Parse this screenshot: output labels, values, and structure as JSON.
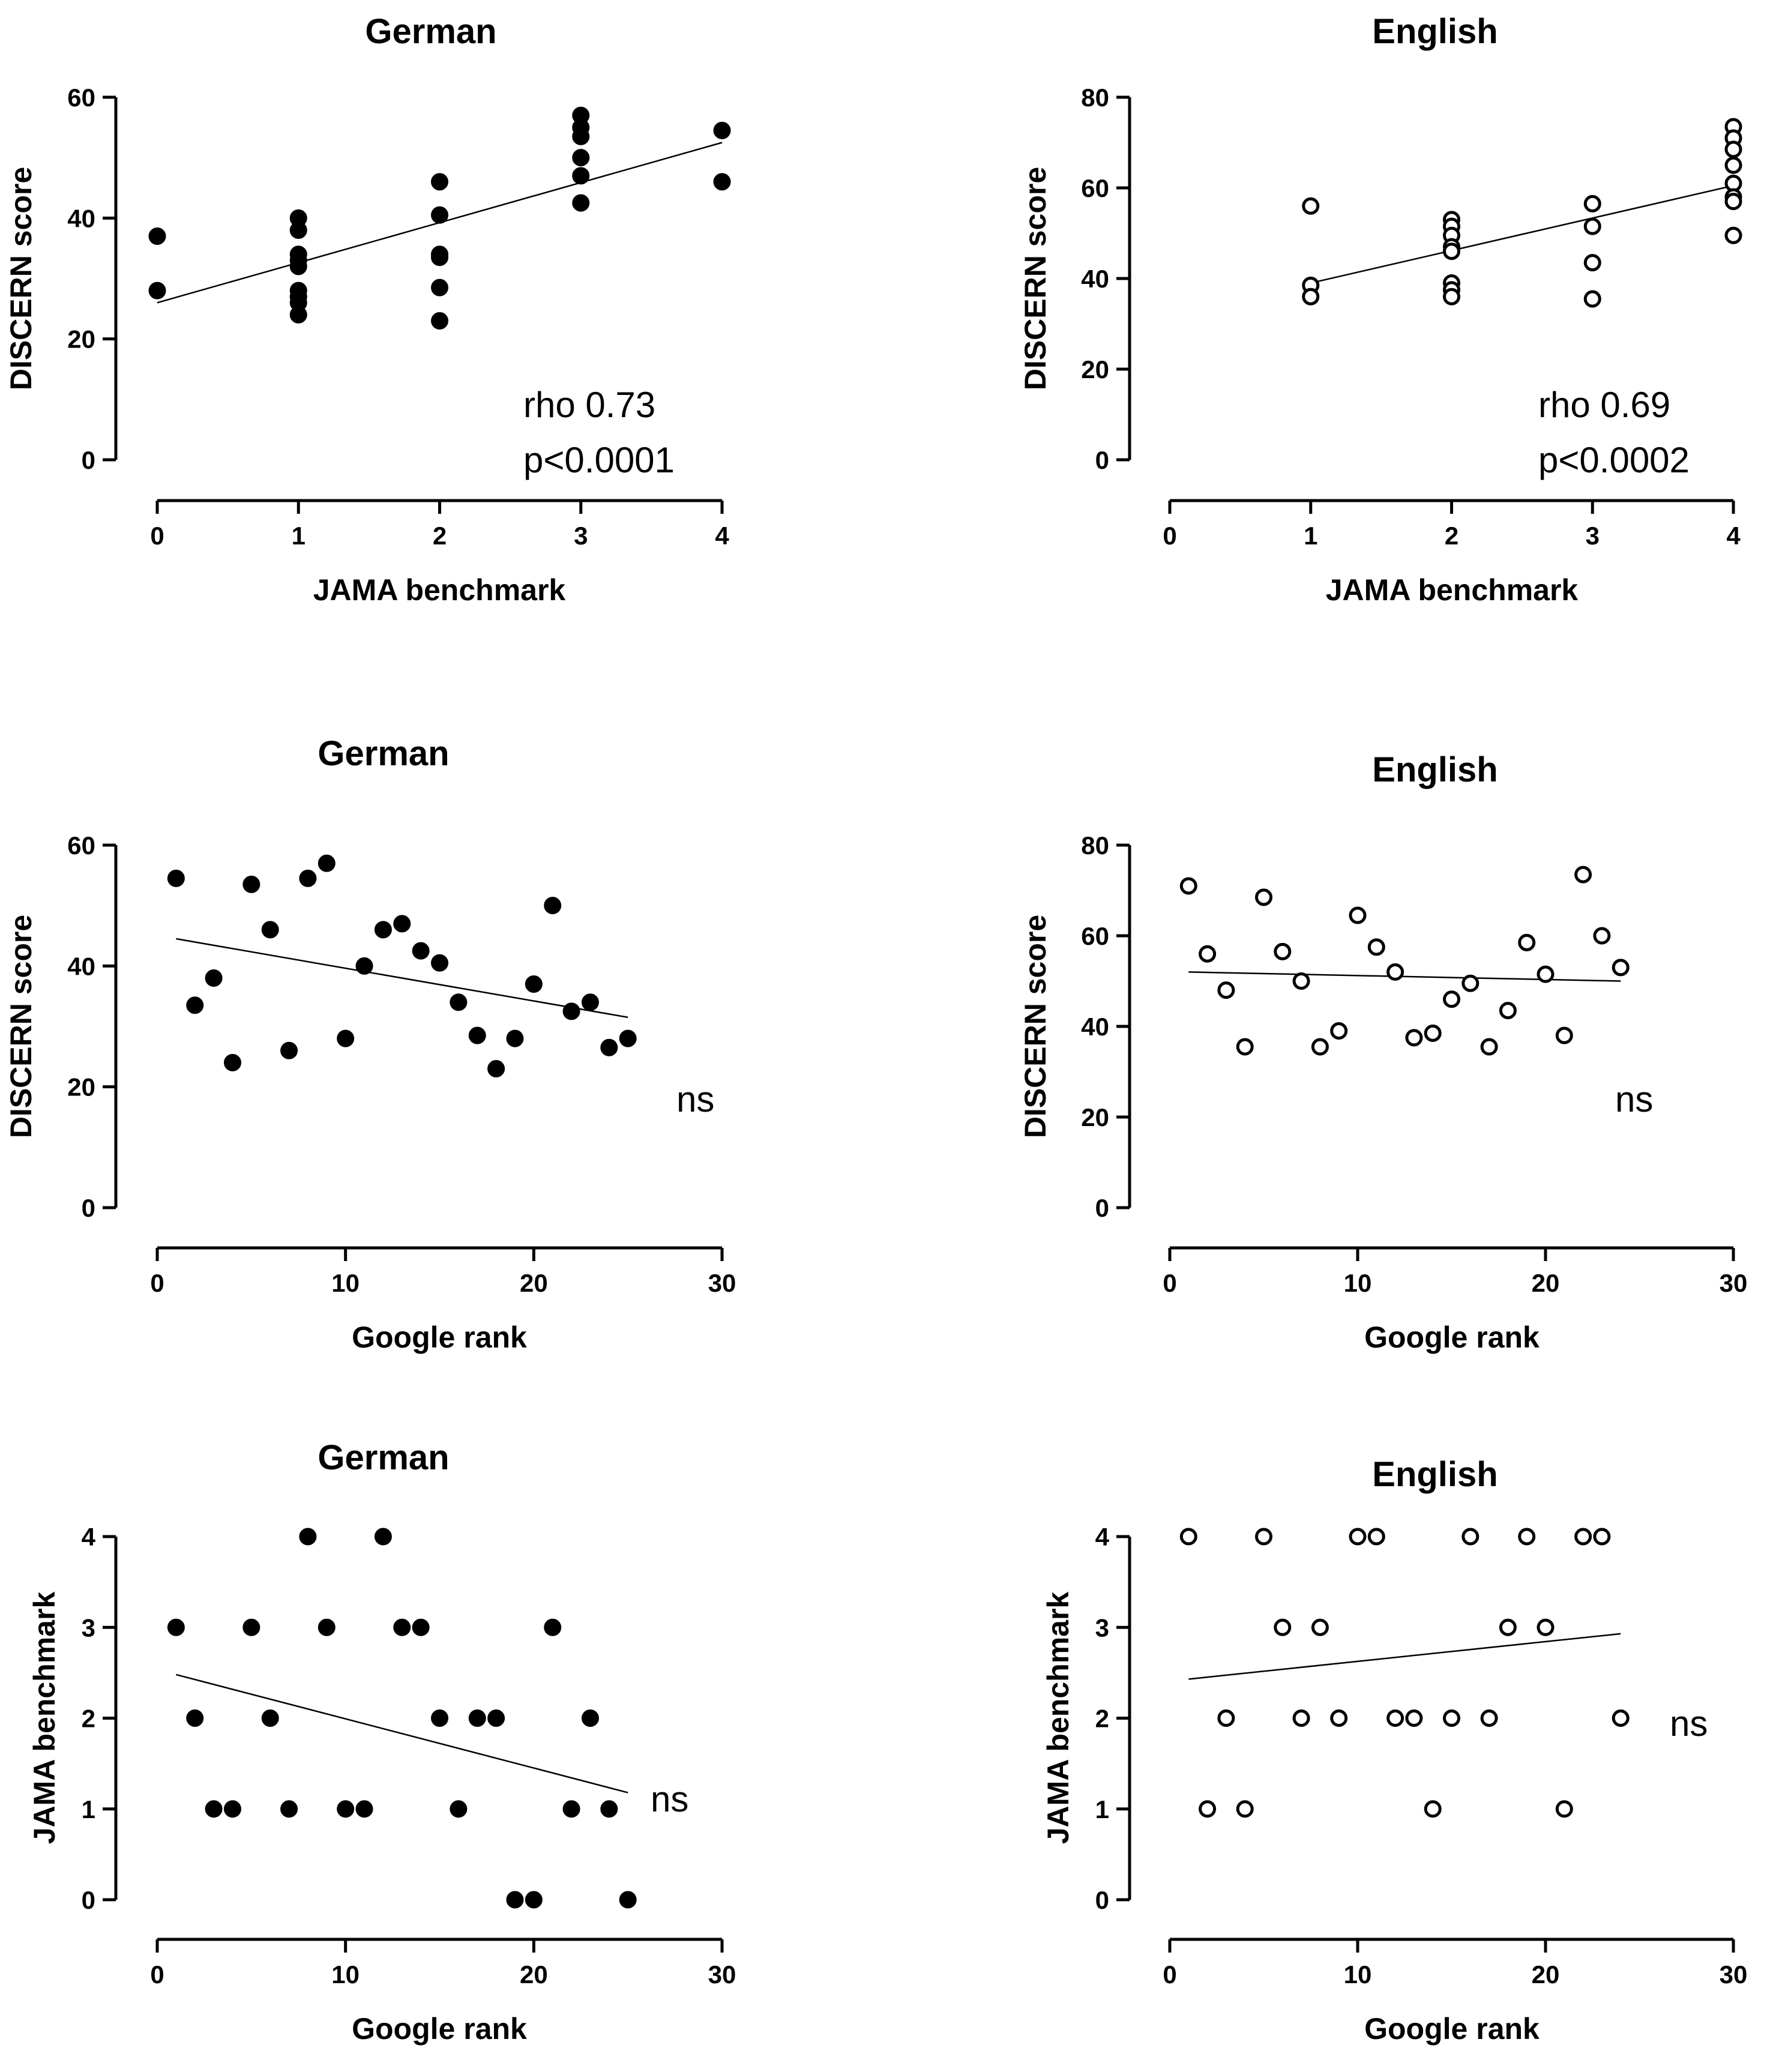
{
  "chart_data": [
    {
      "type": "scatter",
      "title": "German",
      "xlabel": "JAMA benchmark",
      "ylabel": "DISCERN score",
      "xlim": [
        0,
        4
      ],
      "ylim": [
        0,
        60
      ],
      "xticks": [
        "0",
        "1",
        "2",
        "3",
        "4"
      ],
      "yticks": [
        "0",
        "20",
        "40",
        "60"
      ],
      "marker": "filled",
      "points": [
        [
          0,
          37
        ],
        [
          0,
          28
        ],
        [
          1,
          40
        ],
        [
          1,
          38
        ],
        [
          1,
          34
        ],
        [
          1,
          33
        ],
        [
          1,
          32
        ],
        [
          1,
          28
        ],
        [
          1,
          27
        ],
        [
          1,
          26
        ],
        [
          1,
          24
        ],
        [
          2,
          46
        ],
        [
          2,
          40.5
        ],
        [
          2,
          34
        ],
        [
          2,
          33.5
        ],
        [
          2,
          28.5
        ],
        [
          2,
          23
        ],
        [
          3,
          57
        ],
        [
          3,
          55
        ],
        [
          3,
          53.5
        ],
        [
          3,
          50
        ],
        [
          3,
          47
        ],
        [
          3,
          42.5
        ],
        [
          4,
          54.5
        ],
        [
          4,
          46
        ]
      ],
      "fit_line": [
        [
          0,
          26
        ],
        [
          4,
          52.5
        ]
      ],
      "annotation": [
        "rho 0.73",
        "p<0.0001"
      ]
    },
    {
      "type": "scatter",
      "title": "English",
      "xlabel": "JAMA benchmark",
      "ylabel": "DISCERN score",
      "xlim": [
        0,
        4
      ],
      "ylim": [
        0,
        80
      ],
      "xticks": [
        "0",
        "1",
        "2",
        "3",
        "4"
      ],
      "yticks": [
        "0",
        "20",
        "40",
        "60",
        "80"
      ],
      "marker": "open",
      "points": [
        [
          1,
          56
        ],
        [
          1,
          38.5
        ],
        [
          1,
          36
        ],
        [
          2,
          53
        ],
        [
          2,
          51.5
        ],
        [
          2,
          49.5
        ],
        [
          2,
          47
        ],
        [
          2,
          46
        ],
        [
          2,
          39
        ],
        [
          2,
          37.5
        ],
        [
          2,
          36
        ],
        [
          3,
          56.5
        ],
        [
          3,
          51.5
        ],
        [
          3,
          43.5
        ],
        [
          3,
          35.5
        ],
        [
          4,
          73.5
        ],
        [
          4,
          71
        ],
        [
          4,
          68.5
        ],
        [
          4,
          65
        ],
        [
          4,
          61
        ],
        [
          4,
          58
        ],
        [
          4,
          57
        ],
        [
          4,
          49.5
        ]
      ],
      "fit_line": [
        [
          1,
          39
        ],
        [
          4,
          60.5
        ]
      ],
      "annotation": [
        "rho 0.69",
        "p<0.0002"
      ]
    },
    {
      "type": "scatter",
      "title": "German",
      "xlabel": "Google rank",
      "ylabel": "DISCERN score",
      "xlim": [
        0,
        30
      ],
      "ylim": [
        0,
        60
      ],
      "xticks": [
        "0",
        "10",
        "20",
        "30"
      ],
      "yticks": [
        "0",
        "20",
        "40",
        "60"
      ],
      "marker": "filled",
      "points": [
        [
          1,
          54.5
        ],
        [
          2,
          33.5
        ],
        [
          3,
          38
        ],
        [
          4,
          24
        ],
        [
          5,
          53.5
        ],
        [
          6,
          46
        ],
        [
          7,
          26
        ],
        [
          8,
          54.5
        ],
        [
          9,
          57
        ],
        [
          10,
          28
        ],
        [
          11,
          40
        ],
        [
          12,
          46
        ],
        [
          13,
          47
        ],
        [
          14,
          42.5
        ],
        [
          15,
          40.5
        ],
        [
          16,
          34
        ],
        [
          17,
          28.5
        ],
        [
          18,
          23
        ],
        [
          19,
          28
        ],
        [
          20,
          37
        ],
        [
          21,
          50
        ],
        [
          22,
          32.5
        ],
        [
          23,
          34
        ],
        [
          24,
          26.5
        ],
        [
          25,
          28
        ]
      ],
      "fit_line": [
        [
          1,
          44.5
        ],
        [
          25,
          31.5
        ]
      ],
      "annotation": [
        "ns"
      ]
    },
    {
      "type": "scatter",
      "title": "English",
      "xlabel": "Google rank",
      "ylabel": "DISCERN score",
      "xlim": [
        0,
        30
      ],
      "ylim": [
        0,
        80
      ],
      "xticks": [
        "0",
        "10",
        "20",
        "30"
      ],
      "yticks": [
        "0",
        "20",
        "40",
        "60",
        "80"
      ],
      "marker": "open",
      "points": [
        [
          1,
          71
        ],
        [
          2,
          56
        ],
        [
          3,
          48
        ],
        [
          4,
          35.5
        ],
        [
          5,
          68.5
        ],
        [
          6,
          56.5
        ],
        [
          7,
          50
        ],
        [
          8,
          35.5
        ],
        [
          9,
          39
        ],
        [
          10,
          64.5
        ],
        [
          11,
          57.5
        ],
        [
          12,
          52
        ],
        [
          13,
          37.5
        ],
        [
          14,
          38.5
        ],
        [
          15,
          46
        ],
        [
          16,
          49.5
        ],
        [
          17,
          35.5
        ],
        [
          18,
          43.5
        ],
        [
          19,
          58.5
        ],
        [
          20,
          51.5
        ],
        [
          21,
          38
        ],
        [
          22,
          73.5
        ],
        [
          23,
          60
        ],
        [
          24,
          53
        ]
      ],
      "fit_line": [
        [
          1,
          52
        ],
        [
          24,
          50
        ]
      ],
      "annotation": [
        "ns"
      ]
    },
    {
      "type": "scatter",
      "title": "German",
      "xlabel": "Google rank",
      "ylabel": "JAMA benchmark",
      "xlim": [
        0,
        30
      ],
      "ylim": [
        0,
        4
      ],
      "xticks": [
        "0",
        "10",
        "20",
        "30"
      ],
      "yticks": [
        "0",
        "1",
        "2",
        "3",
        "4"
      ],
      "marker": "filled",
      "points": [
        [
          1,
          3
        ],
        [
          2,
          2
        ],
        [
          3,
          1
        ],
        [
          4,
          1
        ],
        [
          5,
          3
        ],
        [
          6,
          2
        ],
        [
          7,
          1
        ],
        [
          8,
          4
        ],
        [
          9,
          3
        ],
        [
          10,
          1
        ],
        [
          11,
          1
        ],
        [
          12,
          4
        ],
        [
          13,
          3
        ],
        [
          14,
          3
        ],
        [
          15,
          2
        ],
        [
          16,
          1
        ],
        [
          17,
          2
        ],
        [
          18,
          2
        ],
        [
          19,
          0
        ],
        [
          20,
          0
        ],
        [
          21,
          3
        ],
        [
          22,
          1
        ],
        [
          23,
          2
        ],
        [
          24,
          1
        ],
        [
          25,
          0
        ]
      ],
      "fit_line": [
        [
          1,
          2.48
        ],
        [
          25,
          1.18
        ]
      ],
      "annotation": [
        "ns"
      ]
    },
    {
      "type": "scatter",
      "title": "English",
      "xlabel": "Google rank",
      "ylabel": "JAMA benchmark",
      "xlim": [
        0,
        30
      ],
      "ylim": [
        0,
        4
      ],
      "xticks": [
        "0",
        "10",
        "20",
        "30"
      ],
      "yticks": [
        "0",
        "1",
        "2",
        "3",
        "4"
      ],
      "marker": "open",
      "points": [
        [
          1,
          4
        ],
        [
          2,
          1
        ],
        [
          3,
          2
        ],
        [
          4,
          1
        ],
        [
          5,
          4
        ],
        [
          6,
          3
        ],
        [
          7,
          2
        ],
        [
          8,
          3
        ],
        [
          9,
          2
        ],
        [
          10,
          4
        ],
        [
          11,
          4
        ],
        [
          12,
          2
        ],
        [
          13,
          2
        ],
        [
          14,
          1
        ],
        [
          15,
          2
        ],
        [
          16,
          4
        ],
        [
          17,
          2
        ],
        [
          18,
          3
        ],
        [
          19,
          4
        ],
        [
          20,
          3
        ],
        [
          21,
          1
        ],
        [
          22,
          4
        ],
        [
          23,
          4
        ],
        [
          24,
          2
        ]
      ],
      "fit_line": [
        [
          1,
          2.43
        ],
        [
          24,
          2.93
        ]
      ],
      "annotation": [
        "ns"
      ]
    }
  ]
}
